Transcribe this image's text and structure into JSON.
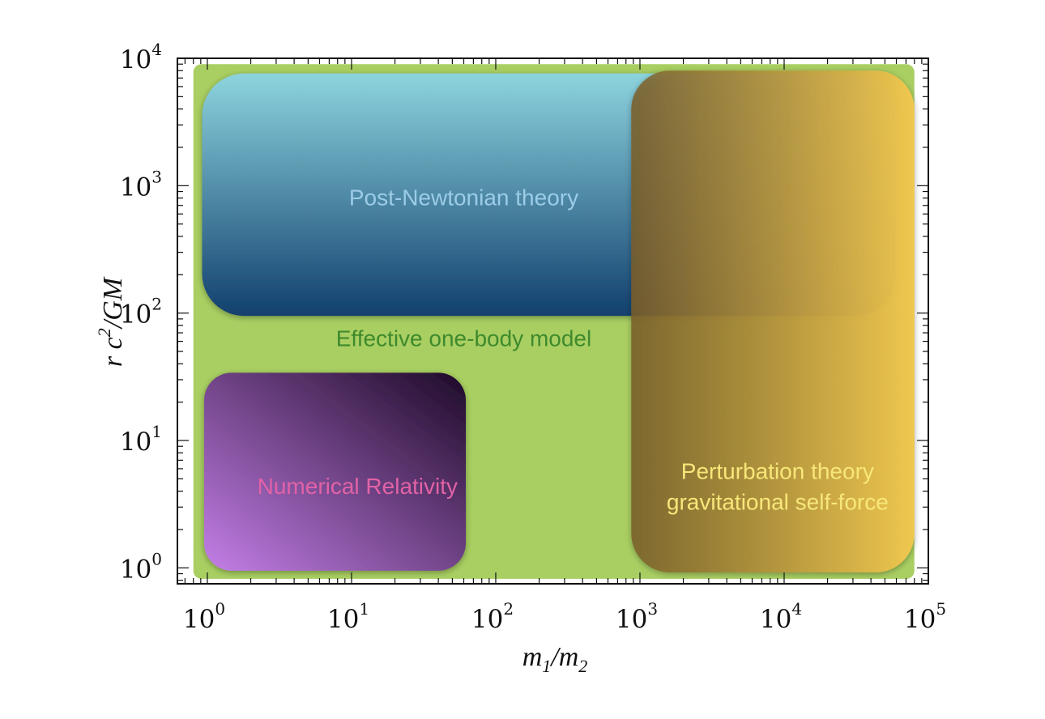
{
  "chart_data": {
    "type": "diagram-regions",
    "x_scale": "log",
    "y_scale": "log",
    "xlim": [
      0.62,
      100000
    ],
    "ylim": [
      0.75,
      10000
    ],
    "x_ticks": [
      {
        "value": 1,
        "base": "10",
        "exp": "0"
      },
      {
        "value": 10,
        "base": "10",
        "exp": "1"
      },
      {
        "value": 100,
        "base": "10",
        "exp": "2"
      },
      {
        "value": 1000,
        "base": "10",
        "exp": "3"
      },
      {
        "value": 10000,
        "base": "10",
        "exp": "4"
      },
      {
        "value": 100000,
        "base": "10",
        "exp": "5"
      }
    ],
    "y_ticks": [
      {
        "value": 1,
        "base": "10",
        "exp": "0"
      },
      {
        "value": 10,
        "base": "10",
        "exp": "1"
      },
      {
        "value": 100,
        "base": "10",
        "exp": "2"
      },
      {
        "value": 1000,
        "base": "10",
        "exp": "3"
      },
      {
        "value": 10000,
        "base": "10",
        "exp": "4"
      }
    ],
    "xlabel": {
      "m": "m",
      "sub1": "1",
      "slash": "/m",
      "sub2": "2"
    },
    "ylabel": {
      "r": "r c",
      "sup": "2",
      "rest": "/GM"
    },
    "regions": [
      {
        "name": "Effective one-body model",
        "x": [
          0.8,
          80000
        ],
        "y": [
          0.82,
          9000
        ],
        "color": "#a9cf62",
        "label_color": "#3e8a2c",
        "label_at": [
          60,
          55
        ]
      },
      {
        "name": "Post-Newtonian theory",
        "x": [
          0.92,
          60000
        ],
        "y": [
          95,
          7600
        ],
        "colors": [
          "#8dd4de",
          "#12406e"
        ],
        "label_color": "#9ccce6",
        "label_at": [
          60,
          700
        ]
      },
      {
        "name": "Numerical Relativity",
        "x": [
          0.95,
          62
        ],
        "y": [
          0.95,
          34
        ],
        "colors": [
          "#c47fe8",
          "#1e0a28"
        ],
        "label_color": "#e262a6",
        "label_at": [
          11,
          3.8
        ]
      },
      {
        "name": "Perturbation theory",
        "name2": "gravitational self-force",
        "x": [
          870,
          80000
        ],
        "y": [
          0.92,
          8000
        ],
        "colors": [
          "#7a5e2a",
          "#f2c84e"
        ],
        "label_color": "#f7e77a",
        "label_at": [
          9000,
          5
        ]
      }
    ]
  }
}
